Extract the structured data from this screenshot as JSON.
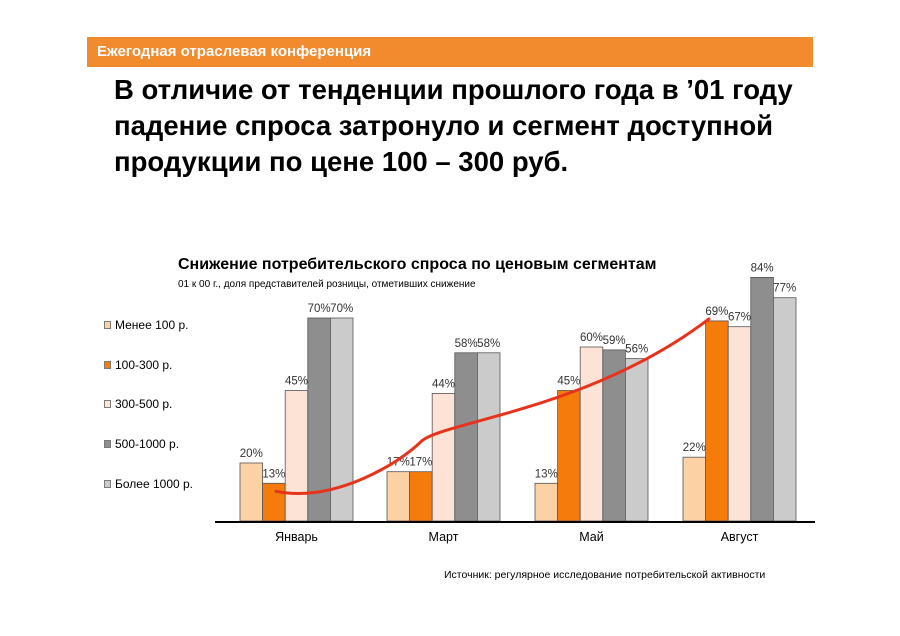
{
  "header": {
    "banner": "Ежегодная отраслевая конференция",
    "headline": "В отличие от тенденции прошлого года в ’01 году падение спроса затронуло и сегмент доступной продукции по цене 100 – 300 руб."
  },
  "chart_data": {
    "type": "bar",
    "title": "Снижение потребительского спроса по ценовым сегментам",
    "subtitle": "01 к 00 г., доля представителей розницы, отметивших снижение",
    "categories": [
      "Январь",
      "Март",
      "Май",
      "Август"
    ],
    "series": [
      {
        "name": "Менее 100 р.",
        "color": "#fcd2a4",
        "values": [
          20,
          17,
          13,
          22
        ],
        "labels": [
          "20%",
          "17%",
          "13%",
          "22%"
        ]
      },
      {
        "name": "100-300 р.",
        "color": "#f57c0a",
        "values": [
          13,
          17,
          45,
          69
        ],
        "labels": [
          "13%",
          "17%",
          "45%",
          "69%"
        ]
      },
      {
        "name": "300-500 р.",
        "color": "#fde2d6",
        "values": [
          45,
          44,
          60,
          67
        ],
        "labels": [
          "45%",
          "44%",
          "60%",
          "67%"
        ]
      },
      {
        "name": "500-1000 р.",
        "color": "#8e8e8e",
        "values": [
          70,
          58,
          59,
          84
        ],
        "labels": [
          "70%",
          "58%",
          "59%",
          "84%"
        ]
      },
      {
        "name": "Более 1000 р.",
        "color": "#cbcbcb",
        "values": [
          70,
          58,
          56,
          77
        ],
        "labels": [
          "70%",
          "58%",
          "56%",
          "77%"
        ]
      }
    ],
    "trend": {
      "series": "100-300 р.",
      "color": "#e8331c"
    },
    "ylim": [
      0,
      100
    ],
    "grid": false,
    "legend_position": "left"
  },
  "footer": {
    "source": "Источник: регулярное исследование потребительской активности"
  }
}
